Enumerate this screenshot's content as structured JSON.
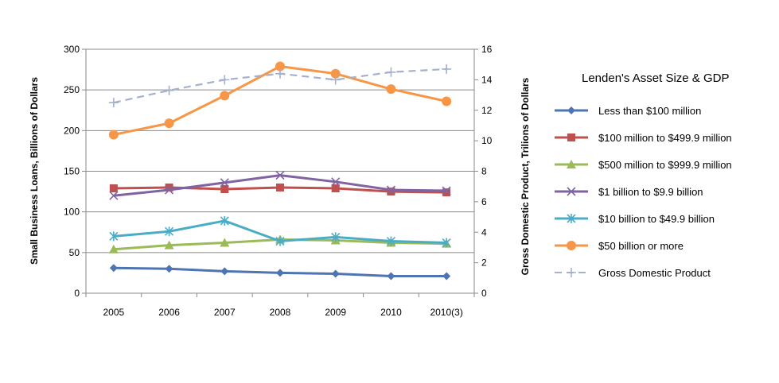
{
  "chart_data": {
    "type": "line",
    "categories": [
      "2005",
      "2006",
      "2007",
      "2008",
      "2009",
      "2010",
      "2010(3)"
    ],
    "ylabel_left": "Small Business Loans, Billions of Dollars",
    "ylabel_right": "Gross Domestic Product, Trilions of Dollars",
    "ylim_left": [
      0,
      300
    ],
    "yticks_left": [
      0,
      50,
      100,
      150,
      200,
      250,
      300
    ],
    "ylim_right": [
      0,
      16
    ],
    "yticks_right": [
      0,
      2,
      4,
      6,
      8,
      10,
      12,
      14,
      16
    ],
    "grid": "horizontal",
    "legend_title": "Lenden's Asset Size & GDP",
    "legend_position": "right",
    "series": [
      {
        "name": "Less than $100 million",
        "axis": "left",
        "color": "#4f74b3",
        "marker": "diamond",
        "dash": false,
        "values": [
          31,
          30,
          27,
          25,
          24,
          21,
          21
        ]
      },
      {
        "name": "$100 million to $499.9 million",
        "axis": "left",
        "color": "#c0504d",
        "marker": "square",
        "dash": false,
        "values": [
          129,
          130,
          128,
          130,
          129,
          125,
          124
        ]
      },
      {
        "name": "$500 million to $999.9 million",
        "axis": "left",
        "color": "#9bbb59",
        "marker": "triangle",
        "dash": false,
        "values": [
          54,
          59,
          62,
          66,
          65,
          62,
          61
        ]
      },
      {
        "name": "$1 billion to $9.9 billion",
        "axis": "left",
        "color": "#8064a2",
        "marker": "x",
        "dash": false,
        "values": [
          120,
          127,
          136,
          145,
          137,
          127,
          126
        ]
      },
      {
        "name": "$10 billion to $49.9 billion",
        "axis": "left",
        "color": "#4bacc6",
        "marker": "star",
        "dash": false,
        "values": [
          70,
          76,
          89,
          64,
          69,
          64,
          62
        ]
      },
      {
        "name": "$50 billion or more",
        "axis": "left",
        "color": "#f79646",
        "marker": "circle",
        "dash": false,
        "values": [
          195,
          209,
          243,
          279,
          270,
          251,
          236
        ]
      },
      {
        "name": "Gross Domestic Product",
        "axis": "right",
        "color": "#a5b0cc",
        "marker": "plus",
        "dash": true,
        "values": [
          12.5,
          13.3,
          14.0,
          14.4,
          14.0,
          14.5,
          14.7
        ]
      }
    ]
  }
}
